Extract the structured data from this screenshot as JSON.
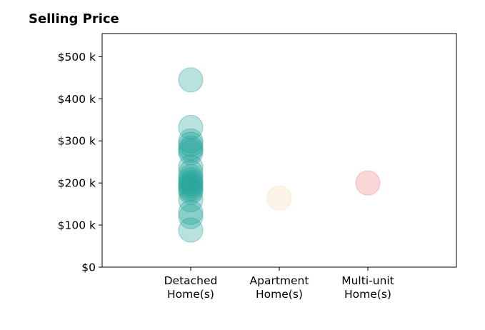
{
  "title": "Selling Price",
  "chart_data": {
    "type": "scatter",
    "title": "Selling Price",
    "xlabel": "",
    "ylabel": "",
    "ylim": [
      0,
      555
    ],
    "y_unit": "$ thousands",
    "y_ticks": [
      {
        "value": 0,
        "label": "$0"
      },
      {
        "value": 100,
        "label": "$100 k"
      },
      {
        "value": 200,
        "label": "$200 k"
      },
      {
        "value": 300,
        "label": "$300 k"
      },
      {
        "value": 400,
        "label": "$400 k"
      },
      {
        "value": 500,
        "label": "$500 k"
      }
    ],
    "categories": [
      {
        "label": [
          "Detached",
          "Home(s)"
        ],
        "color": "#26a69a"
      },
      {
        "label": [
          "Apartment",
          "Home(s)"
        ],
        "color": "#f5deb3"
      },
      {
        "label": [
          "Multi-unit",
          "Home(s)"
        ],
        "color": "#f08080"
      }
    ],
    "series": [
      {
        "category": 0,
        "values": [
          445,
          332,
          300,
          292,
          283,
          278,
          272,
          238,
          225,
          215,
          208,
          202,
          198,
          193,
          188,
          183,
          178,
          160,
          130,
          120,
          88
        ]
      },
      {
        "category": 1,
        "values": [
          164
        ]
      },
      {
        "category": 2,
        "values": [
          200
        ]
      }
    ],
    "grid": false,
    "legend": "none"
  }
}
